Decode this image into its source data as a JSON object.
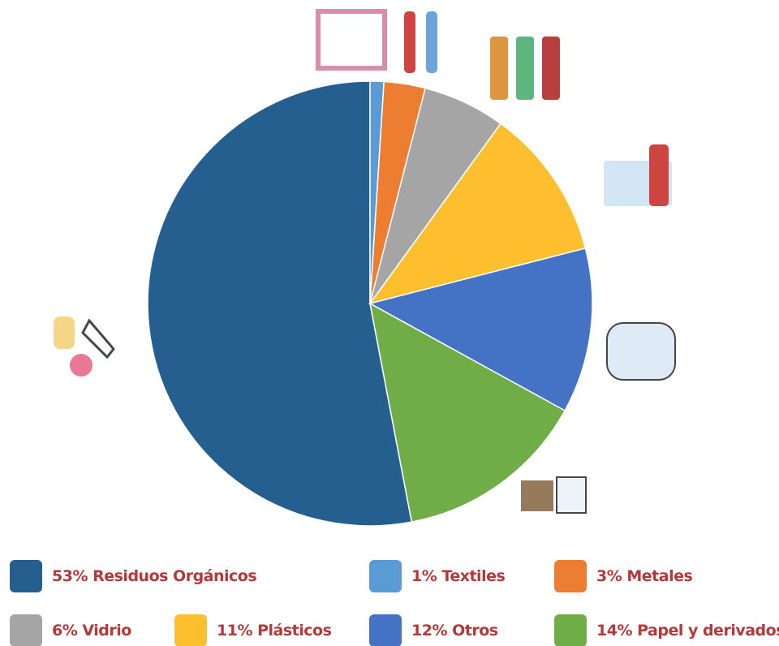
{
  "chart_data": {
    "type": "pie",
    "categories": [
      "Residuos Orgánicos",
      "Textiles",
      "Metales",
      "Vidrio",
      "Plásticos",
      "Otros",
      "Papel y derivados"
    ],
    "values": [
      53,
      1,
      3,
      6,
      11,
      12,
      14
    ],
    "value_labels": [
      "53%",
      "1%",
      "3%",
      "6%",
      "11%",
      "12%",
      "14%"
    ],
    "colors": [
      "#245f8f",
      "#5b9bd5",
      "#ed7d31",
      "#a5a5a5",
      "#fdbf2d",
      "#4472c4",
      "#70ad47"
    ]
  }
}
